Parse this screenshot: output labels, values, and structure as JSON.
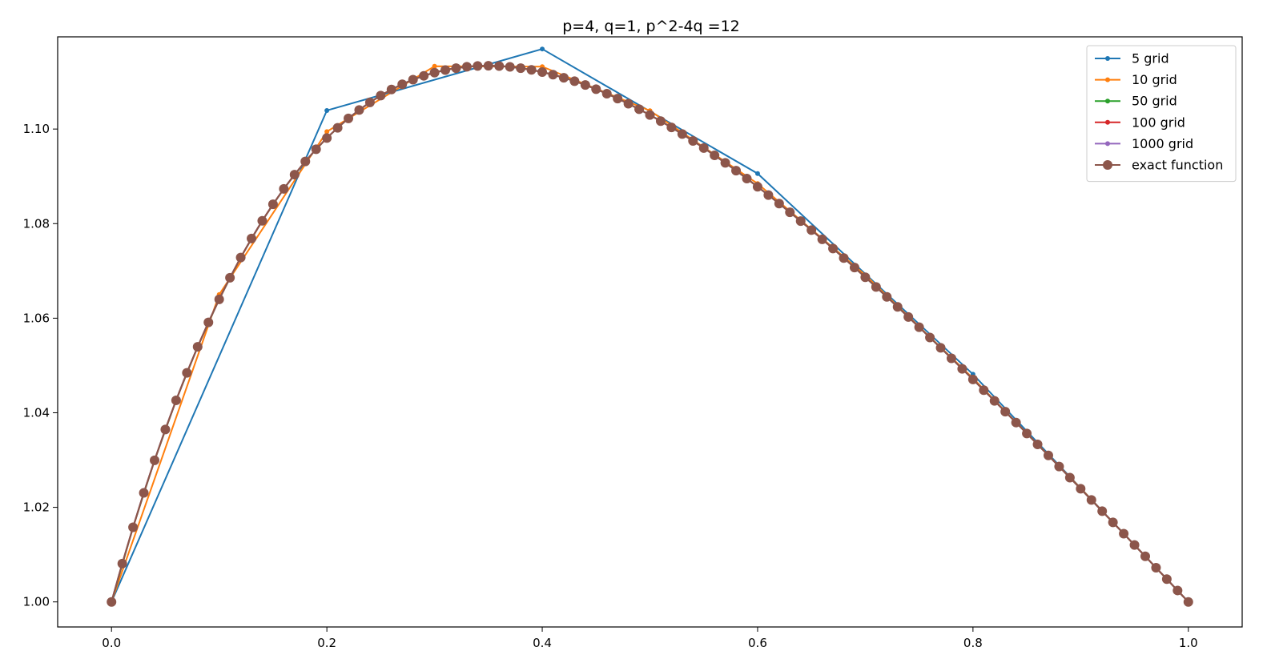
{
  "chart_data": {
    "type": "line",
    "title": "p=4, q=1, p^2-4q =12",
    "xlabel": "",
    "ylabel": "",
    "xlim": [
      -0.05,
      1.05
    ],
    "ylim": [
      0.9947,
      1.1195
    ],
    "x_ticks": [
      0.0,
      0.2,
      0.4,
      0.6,
      0.8,
      1.0
    ],
    "x_tick_labels": [
      "0.0",
      "0.2",
      "0.4",
      "0.6",
      "0.8",
      "1.0"
    ],
    "y_ticks": [
      1.0,
      1.02,
      1.04,
      1.06,
      1.08,
      1.1
    ],
    "y_tick_labels": [
      "1.00",
      "1.02",
      "1.04",
      "1.06",
      "1.08",
      "1.10"
    ],
    "grid": false,
    "legend_position": "top-right",
    "model": {
      "p": 4,
      "q": 1
    },
    "series": [
      {
        "name": "5 grid",
        "n": 5,
        "color": "#1f77b4",
        "marker": "small-dot"
      },
      {
        "name": "10 grid",
        "n": 10,
        "color": "#ff7f0e",
        "marker": "small-dot"
      },
      {
        "name": "50 grid",
        "n": 50,
        "color": "#2ca02c",
        "marker": "small-dot"
      },
      {
        "name": "100 grid",
        "n": 100,
        "color": "#d62728",
        "marker": "small-dot"
      },
      {
        "name": "1000 grid",
        "n": 1000,
        "color": "#9467bd",
        "marker": "small-dot"
      },
      {
        "name": "exact function",
        "n": 100,
        "color": "#8c564b",
        "marker": "large-dot",
        "exact": true
      }
    ]
  }
}
